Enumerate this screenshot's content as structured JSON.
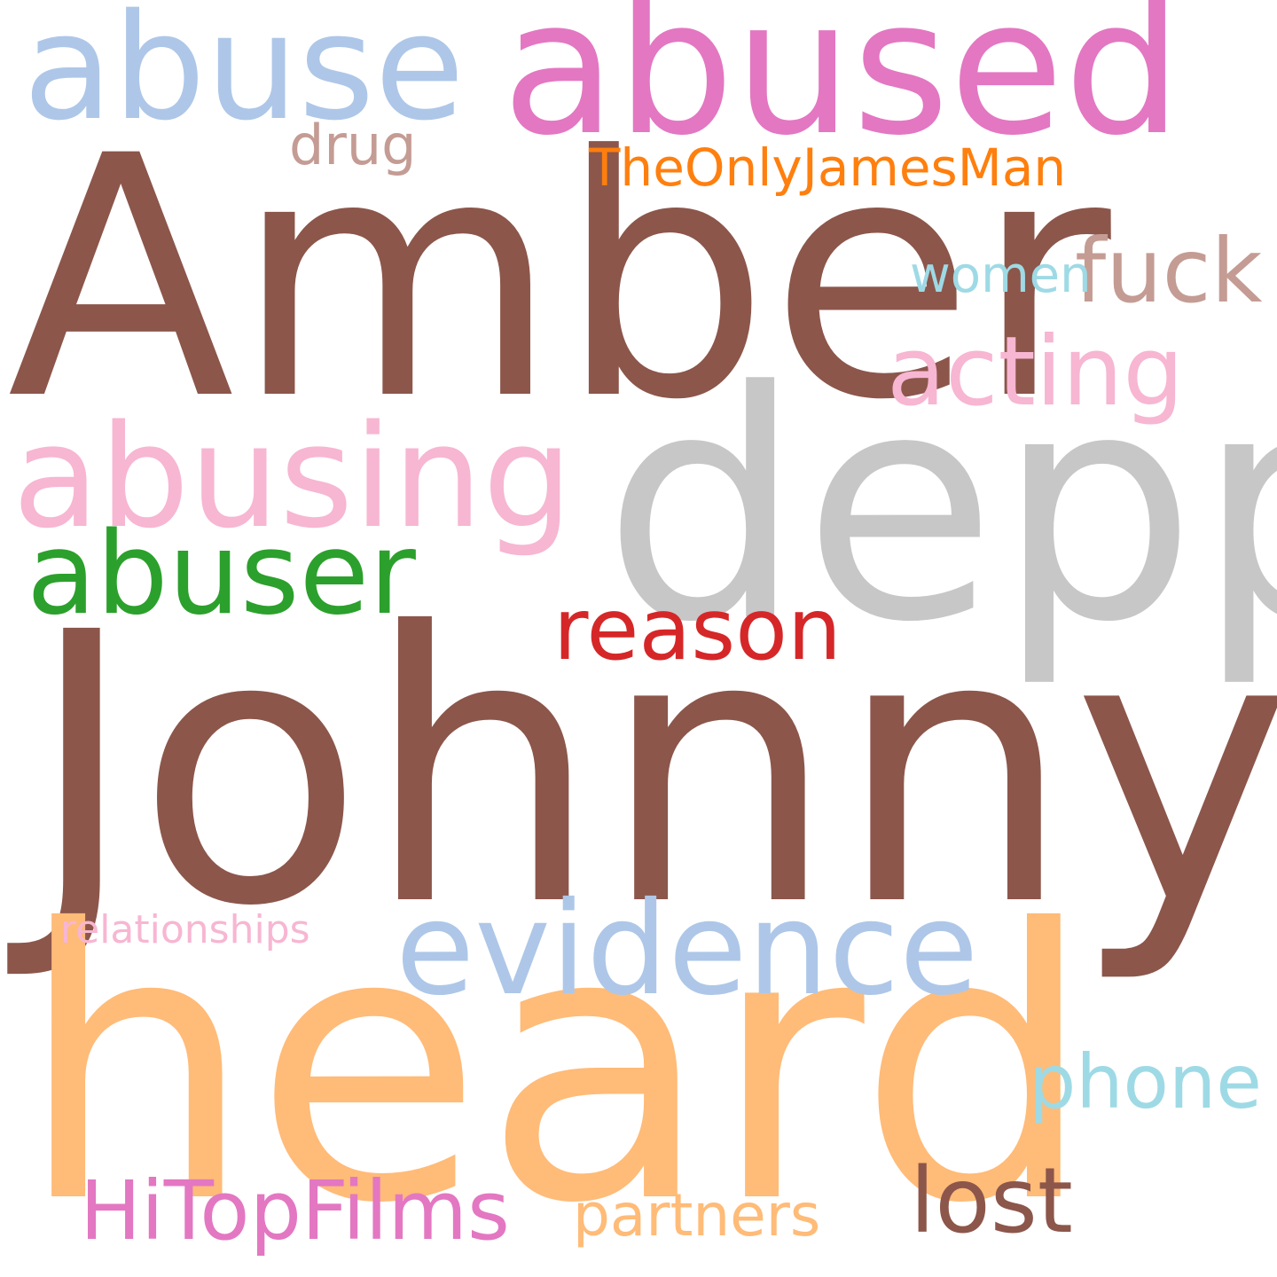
{
  "word_cloud": {
    "words": [
      {
        "text": "Amber",
        "color": "#8c564b"
      },
      {
        "text": "Johnny",
        "color": "#8c564b"
      },
      {
        "text": "heard",
        "color": "#ffbb78"
      },
      {
        "text": "depp",
        "color": "#c7c7c7"
      },
      {
        "text": "abused",
        "color": "#e377c2"
      },
      {
        "text": "abuse",
        "color": "#aec7e8"
      },
      {
        "text": "abusing",
        "color": "#f7b6d2"
      },
      {
        "text": "abuser",
        "color": "#2ca02c"
      },
      {
        "text": "evidence",
        "color": "#aec7e8"
      },
      {
        "text": "reason",
        "color": "#d62728"
      },
      {
        "text": "acting",
        "color": "#f7b6d2"
      },
      {
        "text": "fuck",
        "color": "#c49c94"
      },
      {
        "text": "women",
        "color": "#9edae5"
      },
      {
        "text": "TheOnlyJamesMan",
        "color": "#ff7f0e"
      },
      {
        "text": "drug",
        "color": "#c49c94"
      },
      {
        "text": "relationships",
        "color": "#f7b6d2"
      },
      {
        "text": "phone",
        "color": "#9edae5"
      },
      {
        "text": "HiTopFilms",
        "color": "#e377c2"
      },
      {
        "text": "partners",
        "color": "#ffbb78"
      },
      {
        "text": "lost",
        "color": "#8c564b"
      }
    ]
  }
}
